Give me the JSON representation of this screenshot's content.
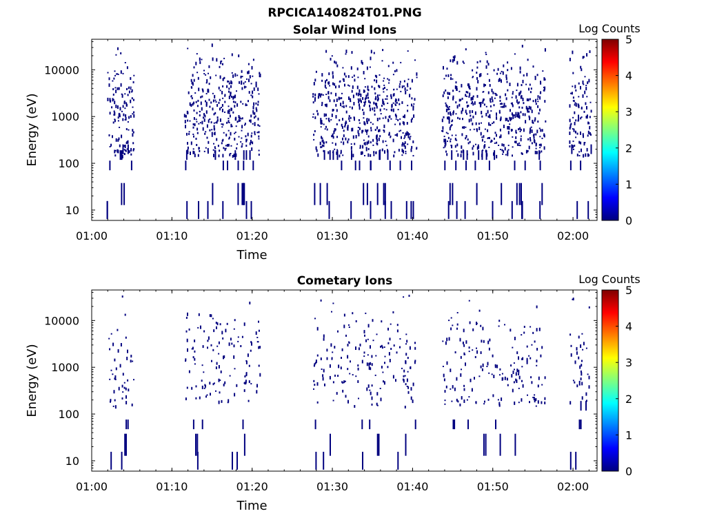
{
  "figure_title": "RPCICA140824T01.PNG",
  "chart_data": [
    {
      "type": "heatmap",
      "title": "Solar Wind Ions",
      "xlabel": "Time",
      "ylabel": "Energy (eV)",
      "x_tick_labels": [
        "01:00",
        "01:10",
        "01:20",
        "01:30",
        "01:40",
        "01:50",
        "02:00"
      ],
      "x_ticks_min": [
        0,
        10,
        20,
        30,
        40,
        50,
        60
      ],
      "xlim_min": [
        0,
        63
      ],
      "y_scale": "log",
      "y_tick_labels": [
        "10",
        "100",
        "1000",
        "10000"
      ],
      "y_ticks": [
        10,
        100,
        1000,
        10000
      ],
      "ylim": [
        6,
        45000
      ],
      "colorbar": {
        "label": "Log Counts",
        "range": [
          0,
          5
        ],
        "tick_labels": [
          "0",
          "1",
          "2",
          "3",
          "4",
          "5"
        ]
      },
      "colormap": [
        "#00007f",
        "#0000ff",
        "#007fff",
        "#00ffff",
        "#7fff7f",
        "#ffff00",
        "#ff7f00",
        "#ff0000",
        "#7f0000"
      ],
      "cell_color": "#00007f",
      "bursts": [
        {
          "start_min": 1.8,
          "end_min": 5.2,
          "low_energy_lines_ev": [
            10,
            22,
            90,
            150,
            200
          ]
        },
        {
          "start_min": 11.5,
          "end_min": 21.0,
          "low_energy_lines_ev": [
            10,
            22,
            90,
            150
          ]
        },
        {
          "start_min": 27.5,
          "end_min": 40.5,
          "low_energy_lines_ev": [
            10,
            22,
            90,
            150
          ]
        },
        {
          "start_min": 43.5,
          "end_min": 56.5,
          "low_energy_lines_ev": [
            10,
            22,
            90,
            150
          ]
        },
        {
          "start_min": 59.5,
          "end_min": 62.2,
          "low_energy_lines_ev": [
            10,
            90,
            200
          ]
        }
      ]
    },
    {
      "type": "heatmap",
      "title": "Cometary Ions",
      "xlabel": "Time",
      "ylabel": "Energy (eV)",
      "x_tick_labels": [
        "01:00",
        "01:10",
        "01:20",
        "01:30",
        "01:40",
        "01:50",
        "02:00"
      ],
      "x_ticks_min": [
        0,
        10,
        20,
        30,
        40,
        50,
        60
      ],
      "xlim_min": [
        0,
        63
      ],
      "y_scale": "log",
      "y_tick_labels": [
        "10",
        "100",
        "1000",
        "10000"
      ],
      "y_ticks": [
        10,
        100,
        1000,
        10000
      ],
      "ylim": [
        6,
        45000
      ],
      "colorbar": {
        "label": "Log Counts",
        "range": [
          0,
          5
        ],
        "tick_labels": [
          "0",
          "1",
          "2",
          "3",
          "4",
          "5"
        ]
      },
      "colormap": [
        "#00007f",
        "#0000ff",
        "#007fff",
        "#00ffff",
        "#7fff7f",
        "#ffff00",
        "#ff7f00",
        "#ff0000",
        "#7f0000"
      ],
      "cell_color": "#00007f",
      "bursts": [
        {
          "start_min": 1.8,
          "end_min": 5.2,
          "low_energy_lines_ev": [
            10,
            22,
            60
          ]
        },
        {
          "start_min": 11.5,
          "end_min": 21.0,
          "low_energy_lines_ev": [
            10,
            22,
            60
          ]
        },
        {
          "start_min": 27.5,
          "end_min": 40.5,
          "low_energy_lines_ev": [
            10,
            22,
            60
          ]
        },
        {
          "start_min": 43.5,
          "end_min": 56.5,
          "low_energy_lines_ev": [
            22,
            60
          ]
        },
        {
          "start_min": 59.5,
          "end_min": 62.2,
          "low_energy_lines_ev": [
            10,
            60,
            150
          ]
        }
      ]
    }
  ]
}
